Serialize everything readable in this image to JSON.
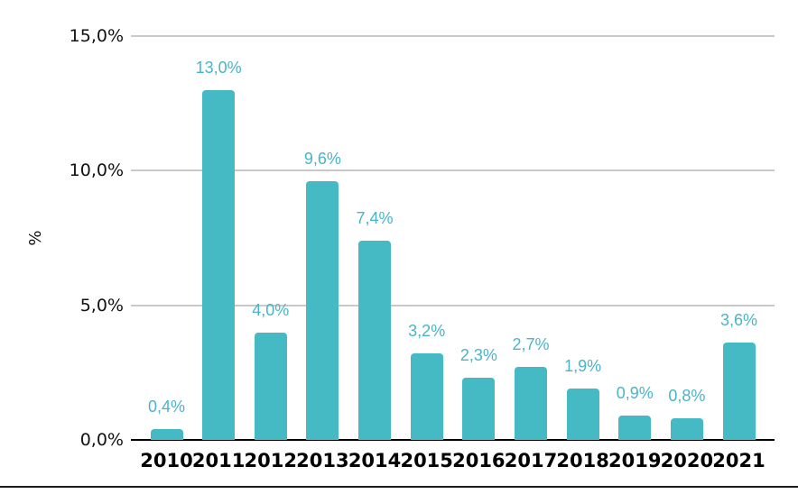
{
  "chart_data": {
    "type": "bar",
    "title": "",
    "xlabel": "",
    "ylabel": "%",
    "categories": [
      "2010",
      "2011",
      "2012",
      "2013",
      "2014",
      "2015",
      "2016",
      "2017",
      "2018",
      "2019",
      "2020",
      "2021"
    ],
    "values": [
      0.4,
      13.0,
      4.0,
      9.6,
      7.4,
      3.2,
      2.3,
      2.7,
      1.9,
      0.9,
      0.8,
      3.6
    ],
    "value_labels": [
      "0,4%",
      "13,0%",
      "4,0%",
      "9,6%",
      "7,4%",
      "3,2%",
      "2,3%",
      "2,7%",
      "1,9%",
      "0,9%",
      "0,8%",
      "3,6%"
    ],
    "ylim": [
      0,
      15
    ],
    "y_ticks": [
      {
        "value": 0,
        "label": "0,0%"
      },
      {
        "value": 5,
        "label": "5,0%"
      },
      {
        "value": 10,
        "label": "10,0%"
      },
      {
        "value": 15,
        "label": "15,0%"
      }
    ],
    "grid": "horizontal",
    "legend": "none",
    "colors": {
      "bar_fill": "#45b9c4",
      "value_label": "#4ab4c9",
      "gridline": "#c9c9c9",
      "zero_axis": "#000000",
      "tick_text": "#111111",
      "category_text": "#000000",
      "bottom_rule": "#1a1a1a"
    }
  }
}
